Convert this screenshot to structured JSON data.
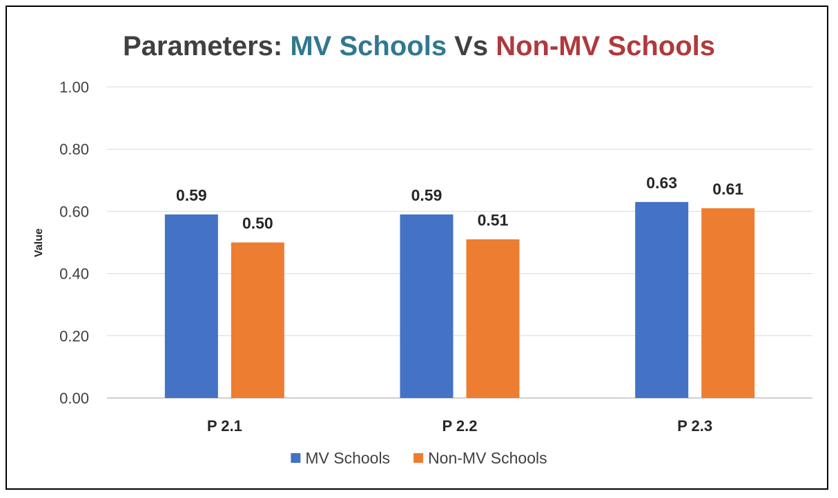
{
  "chart_data": {
    "type": "bar",
    "title_parts": [
      {
        "text": "Parameters: ",
        "color": "#404040"
      },
      {
        "text": "MV Schools",
        "color": "#31788f"
      },
      {
        "text": " Vs ",
        "color": "#404040"
      },
      {
        "text": "Non-MV Schools",
        "color": "#b0393c"
      }
    ],
    "categories": [
      "P 2.1",
      "P 2.2",
      "P 2.3"
    ],
    "series": [
      {
        "name": "MV Schools",
        "color": "#4472c4",
        "values": [
          0.59,
          0.59,
          0.63
        ]
      },
      {
        "name": "Non-MV Schools",
        "color": "#ed7d31",
        "values": [
          0.5,
          0.51,
          0.61
        ]
      }
    ],
    "value_labels": [
      [
        "0.59",
        "0.59",
        "0.63"
      ],
      [
        "0.50",
        "0.51",
        "0.61"
      ]
    ],
    "xlabel": "",
    "ylabel": "Value",
    "ylim": [
      0,
      1
    ],
    "yticks": [
      "0.00",
      "0.20",
      "0.40",
      "0.60",
      "0.80",
      "1.00"
    ],
    "grid": true,
    "legend_position": "bottom"
  }
}
